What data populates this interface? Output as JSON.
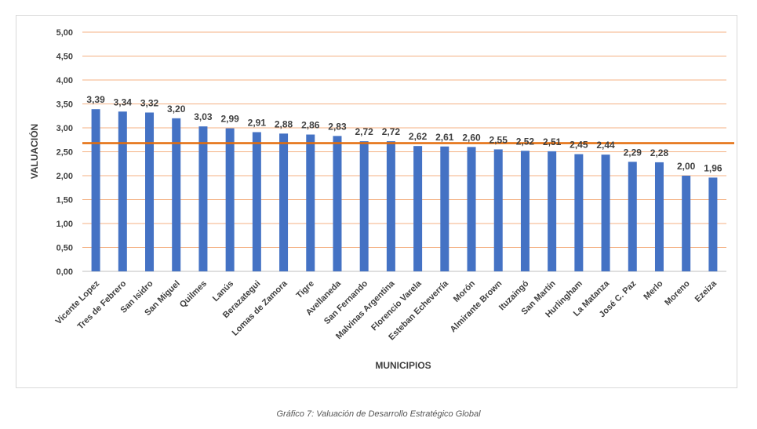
{
  "caption": "Gráfico 7: Valuación de Desarrollo Estratégico Global",
  "chart_data": {
    "type": "bar",
    "xlabel": "MUNICIPIOS",
    "ylabel": "VALUACIÓN",
    "ylim": [
      0,
      5
    ],
    "yticks": [
      "0,00",
      "0,50",
      "1,00",
      "1,50",
      "2,00",
      "2,50",
      "3,00",
      "3,50",
      "4,00",
      "4,50",
      "5,00"
    ],
    "grid": true,
    "categories": [
      "Vicente Lopez",
      "Tres de Febrero",
      "San Isidro",
      "San Miguel",
      "Quilmes",
      "Lanús",
      "Berazategui",
      "Lomas de Zamora",
      "Tigre",
      "Avellaneda",
      "San Fernando",
      "Malvinas Argentina",
      "Florencio Varela",
      "Esteban Echeverría",
      "Morón",
      "Almirante Brown",
      "Ituzaingó",
      "San Martín",
      "Hurlingham",
      "La Matanza",
      "José C. Paz",
      "Merlo",
      "Moreno",
      "Ezeiza"
    ],
    "values": [
      3.39,
      3.34,
      3.32,
      3.2,
      3.03,
      2.99,
      2.91,
      2.88,
      2.86,
      2.83,
      2.72,
      2.72,
      2.62,
      2.61,
      2.6,
      2.55,
      2.52,
      2.51,
      2.45,
      2.44,
      2.29,
      2.28,
      2.0,
      1.96
    ],
    "value_labels": [
      "3,39",
      "3,34",
      "3,32",
      "3,20",
      "3,03",
      "2,99",
      "2,91",
      "2,88",
      "2,86",
      "2,83",
      "2,72",
      "2,72",
      "2,62",
      "2,61",
      "2,60",
      "2,55",
      "2,52",
      "2,51",
      "2,45",
      "2,44",
      "2,29",
      "2,28",
      "2,00",
      "1,96"
    ],
    "reference_line_value": 2.68,
    "colors": {
      "bar": "#4472c4",
      "grid": "#f4b183",
      "reference_line": "#e46c0a",
      "text": "#404040",
      "axis": "#bfbfbf"
    }
  }
}
